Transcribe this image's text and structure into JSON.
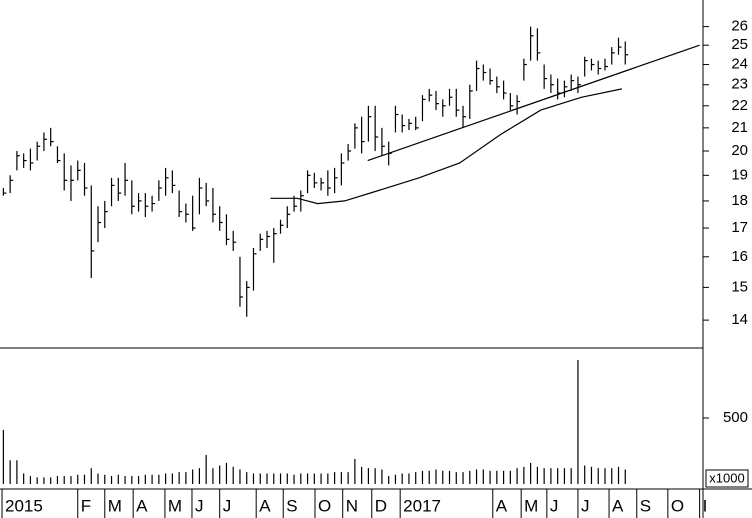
{
  "chart_data": {
    "type": "ohlc",
    "xlim": [
      0,
      104
    ],
    "xticks": [
      {
        "value": 0.3,
        "label": "2015"
      },
      {
        "value": 11.5,
        "label": "F"
      },
      {
        "value": 15.5,
        "label": "M"
      },
      {
        "value": 19.7,
        "label": "A"
      },
      {
        "value": 24.4,
        "label": "M"
      },
      {
        "value": 28.4,
        "label": "J"
      },
      {
        "value": 32.5,
        "label": "J"
      },
      {
        "value": 37.9,
        "label": "A"
      },
      {
        "value": 41.9,
        "label": "S"
      },
      {
        "value": 46.6,
        "label": "O"
      },
      {
        "value": 50.7,
        "label": "N"
      },
      {
        "value": 55.0,
        "label": "D"
      },
      {
        "value": 59.2,
        "label": "2017"
      },
      {
        "value": 72.9,
        "label": "A"
      },
      {
        "value": 77.1,
        "label": "M"
      },
      {
        "value": 80.9,
        "label": "J"
      },
      {
        "value": 85.5,
        "label": "J"
      },
      {
        "value": 90.1,
        "label": "A"
      },
      {
        "value": 94.2,
        "label": "S"
      },
      {
        "value": 98.8,
        "label": "O"
      },
      {
        "value": 103.5,
        "label": "I"
      }
    ],
    "ylim": [
      13.2,
      27.5
    ],
    "log_scale": true,
    "yticks": [
      14,
      15,
      16,
      17,
      18,
      19,
      20,
      21,
      22,
      23,
      24,
      25,
      26
    ],
    "color": "#000000",
    "high": [
      18.5,
      19.0,
      20.0,
      19.9,
      20.1,
      20.4,
      20.8,
      21.0,
      20.2,
      19.9,
      19.4,
      19.6,
      19.5,
      18.6,
      17.8,
      18.0,
      18.9,
      18.9,
      19.5,
      18.8,
      18.3,
      18.3,
      18.2,
      18.8,
      19.3,
      19.2,
      18.4,
      17.9,
      18.2,
      18.9,
      18.7,
      18.5,
      17.8,
      17.5,
      16.9,
      16.0,
      15.2,
      16.3,
      16.8,
      16.9,
      17.0,
      17.3,
      17.8,
      18.2,
      18.4,
      19.2,
      19.1,
      18.9,
      19.2,
      19.3,
      19.9,
      20.3,
      21.2,
      21.5,
      22.0,
      22.0,
      21.0,
      20.4,
      22.0,
      21.6,
      21.4,
      21.5,
      22.5,
      22.8,
      22.7,
      22.3,
      22.8,
      22.8,
      22.0,
      23.0,
      24.2,
      24.0,
      23.8,
      23.4,
      23.2,
      22.6,
      22.5,
      24.3,
      26.0,
      25.9,
      24.0,
      23.5,
      23.3,
      23.2,
      23.5,
      23.4,
      24.4,
      24.3,
      24.2,
      24.3,
      24.9,
      25.4,
      25.2
    ],
    "low": [
      18.2,
      18.3,
      19.2,
      19.3,
      19.2,
      19.6,
      20.0,
      20.2,
      19.5,
      18.4,
      18.0,
      18.8,
      18.2,
      15.3,
      16.5,
      17.0,
      17.8,
      18.0,
      18.2,
      17.5,
      17.6,
      17.4,
      17.6,
      18.0,
      18.2,
      18.3,
      17.4,
      17.2,
      16.9,
      17.5,
      17.8,
      17.2,
      16.9,
      16.4,
      16.2,
      14.4,
      14.1,
      14.9,
      16.2,
      16.3,
      15.8,
      16.8,
      17.0,
      17.6,
      17.6,
      18.3,
      18.5,
      18.4,
      18.2,
      18.3,
      18.6,
      19.6,
      20.1,
      19.9,
      20.4,
      20.0,
      19.8,
      19.4,
      20.8,
      20.8,
      20.9,
      20.9,
      21.3,
      22.2,
      21.8,
      21.5,
      22.0,
      21.5,
      21.0,
      21.4,
      22.7,
      23.2,
      23.0,
      22.6,
      22.3,
      21.8,
      21.6,
      23.2,
      24.2,
      24.2,
      22.8,
      22.6,
      22.3,
      22.4,
      22.7,
      22.6,
      23.4,
      23.7,
      23.5,
      23.7,
      24.0,
      24.5,
      24.0
    ],
    "close": [
      18.3,
      18.8,
      19.8,
      19.6,
      19.5,
      20.2,
      20.5,
      20.4,
      19.6,
      18.8,
      18.8,
      19.2,
      18.5,
      16.2,
      17.2,
      17.6,
      18.6,
      18.3,
      18.8,
      17.8,
      18.0,
      17.8,
      17.9,
      18.5,
      18.9,
      18.6,
      17.6,
      17.5,
      17.0,
      18.5,
      18.0,
      17.5,
      17.2,
      16.6,
      16.5,
      14.7,
      15.0,
      16.1,
      16.6,
      16.7,
      16.8,
      17.1,
      17.5,
      17.8,
      18.2,
      19.0,
      18.7,
      18.7,
      18.5,
      18.9,
      19.5,
      20.0,
      21.0,
      20.4,
      21.5,
      20.6,
      20.2,
      19.9,
      21.6,
      21.1,
      21.2,
      21.0,
      22.3,
      22.5,
      22.1,
      22.0,
      22.4,
      21.8,
      21.5,
      22.7,
      23.8,
      23.6,
      23.2,
      22.9,
      22.6,
      22.0,
      22.2,
      24.0,
      25.5,
      24.6,
      23.3,
      23.0,
      22.6,
      22.9,
      23.2,
      23.0,
      24.2,
      24.0,
      23.8,
      23.9,
      24.6,
      24.9,
      24.5
    ],
    "moving_average": {
      "x": [
        40,
        44,
        47,
        51,
        56,
        62,
        68,
        74,
        80,
        86,
        92
      ],
      "values": [
        18.1,
        18.1,
        17.9,
        18.0,
        18.4,
        18.9,
        19.5,
        20.7,
        21.8,
        22.4,
        22.8
      ]
    },
    "trendline": {
      "x": [
        54.4,
        103.5
      ],
      "values": [
        19.6,
        25.0
      ]
    },
    "volume": [
      410,
      180,
      180,
      80,
      60,
      50,
      50,
      50,
      60,
      60,
      60,
      70,
      70,
      120,
      80,
      70,
      60,
      70,
      60,
      60,
      60,
      70,
      70,
      70,
      80,
      80,
      90,
      90,
      110,
      120,
      220,
      120,
      140,
      160,
      130,
      110,
      90,
      80,
      80,
      80,
      80,
      80,
      80,
      70,
      80,
      80,
      80,
      80,
      80,
      90,
      90,
      90,
      190,
      130,
      120,
      120,
      110,
      60,
      70,
      80,
      80,
      90,
      100,
      100,
      110,
      100,
      100,
      90,
      90,
      100,
      110,
      110,
      100,
      100,
      100,
      100,
      120,
      130,
      160,
      130,
      120,
      120,
      120,
      120,
      120,
      940,
      140,
      130,
      120,
      120,
      120,
      130,
      110
    ],
    "volume_ylim": [
      0,
      1000
    ],
    "volume_yticks": [
      500
    ],
    "volume_unit": "x1000"
  }
}
